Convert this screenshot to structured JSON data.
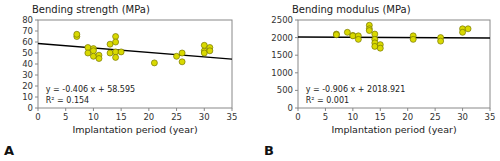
{
  "chart_data": [
    {
      "type": "scatter",
      "title": "Bending strength (MPa)",
      "x_label": "Implantation period (year)",
      "panel_label": "A",
      "annotations": [
        "y = -0.406 x + 58.595",
        "R² = 0.154"
      ],
      "xlim": [
        0,
        35
      ],
      "ylim": [
        0,
        80
      ],
      "xticks": [
        0,
        5,
        10,
        15,
        20,
        25,
        30,
        35
      ],
      "yticks": [
        0,
        10,
        20,
        30,
        40,
        50,
        60,
        70,
        80
      ],
      "grid": false,
      "series": [
        {
          "type": "scatter",
          "color": "#d9d900",
          "x": [
            7,
            7,
            9,
            9,
            10,
            10,
            10,
            11,
            11,
            13,
            13,
            14,
            14,
            14,
            14,
            15,
            21,
            25,
            26,
            26,
            30,
            30,
            30,
            31,
            31
          ],
          "values": [
            65,
            67,
            55,
            50,
            54,
            52,
            47,
            48,
            45,
            58,
            50,
            65,
            60,
            51,
            46,
            51,
            41,
            47,
            42,
            50,
            52,
            57,
            50,
            55,
            52
          ]
        },
        {
          "type": "line",
          "color": "black",
          "x": [
            0,
            35
          ],
          "values": [
            58.595,
            44.385
          ]
        }
      ]
    },
    {
      "type": "scatter",
      "title": "Bending modulus (MPa)",
      "x_label": "Implantation period (year)",
      "panel_label": "B",
      "annotations": [
        "y = -0.906 x + 2018.921",
        "R² = 0.001"
      ],
      "xlim": [
        0,
        35
      ],
      "ylim": [
        0,
        2500
      ],
      "xticks": [
        0,
        5,
        10,
        15,
        20,
        25,
        30,
        35
      ],
      "yticks": [
        0,
        500,
        1000,
        1500,
        2000,
        2500
      ],
      "grid": false,
      "series": [
        {
          "type": "scatter",
          "color": "#d9d900",
          "x": [
            7,
            7,
            9,
            10,
            10,
            11,
            11,
            13,
            13,
            13,
            14,
            14,
            14,
            14,
            15,
            15,
            21,
            21,
            26,
            26,
            30,
            30,
            31
          ],
          "values": [
            2100,
            2080,
            2150,
            2060,
            2050,
            2050,
            1950,
            2350,
            2250,
            2200,
            2100,
            1950,
            1850,
            1750,
            1800,
            1700,
            2050,
            1950,
            2000,
            1900,
            2250,
            2150,
            2250
          ]
        },
        {
          "type": "line",
          "color": "black",
          "x": [
            0,
            35
          ],
          "values": [
            2018.921,
            1987.211
          ]
        }
      ]
    }
  ]
}
